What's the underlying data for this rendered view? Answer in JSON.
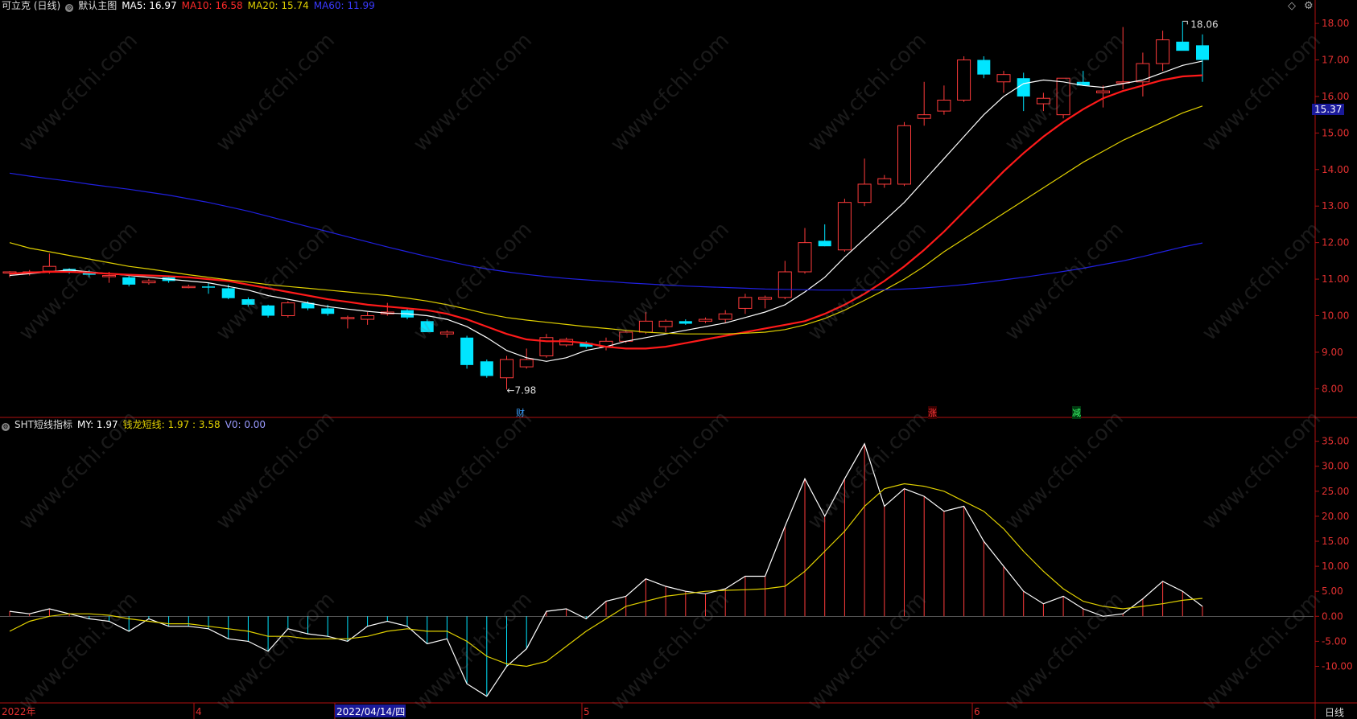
{
  "header": {
    "title": "可立克 (日线)",
    "main_label": "默认主图",
    "ma5": "MA5: 16.97",
    "ma10": "MA10: 16.58",
    "ma20": "MA20: 15.74",
    "ma60": "MA60: 11.99"
  },
  "indicator_header": {
    "name": "SHT短线指标",
    "my": "MY: 1.97",
    "qlx": "钱龙短线: 1.97 : 3.58",
    "v0": "V0: 0.00"
  },
  "labels": {
    "high": "18.06",
    "low": "←7.98",
    "current_price": "15.37",
    "period": "日线",
    "events": [
      "财",
      "涨",
      "减"
    ]
  },
  "watermark": "www.cfchi.com",
  "colors": {
    "up": "#ff3b3b",
    "down": "#00e5ff",
    "ma5": "#ffffff",
    "ma10": "#ff1a1a",
    "ma20": "#e0d000",
    "ma60": "#2020e0",
    "axis": "#b01010",
    "my_line": "#ffffff",
    "qlx_line": "#e0d000"
  },
  "chart_data": [
    {
      "type": "candlestick",
      "ylim": [
        7.7,
        18.2
      ],
      "yticks": [
        "8.00",
        "9.00",
        "10.00",
        "11.00",
        "12.00",
        "13.00",
        "14.00",
        "15.00",
        "16.00",
        "17.00",
        "18.00"
      ],
      "xticks": [
        "2022年",
        "4",
        "2022/04/14/四",
        "5",
        "6"
      ],
      "candles": [
        [
          11.2,
          11.22,
          11.05,
          11.2
        ],
        [
          11.2,
          11.25,
          11.1,
          11.2
        ],
        [
          11.22,
          11.7,
          11.15,
          11.35
        ],
        [
          11.28,
          11.3,
          11.15,
          11.2
        ],
        [
          11.2,
          11.25,
          11.05,
          11.12
        ],
        [
          11.1,
          11.2,
          10.9,
          11.1
        ],
        [
          11.05,
          11.1,
          10.8,
          10.85
        ],
        [
          10.9,
          11.0,
          10.85,
          10.95
        ],
        [
          11.05,
          11.1,
          10.9,
          10.95
        ],
        [
          10.8,
          10.85,
          10.75,
          10.8
        ],
        [
          10.8,
          10.9,
          10.6,
          10.78
        ],
        [
          10.75,
          10.85,
          10.45,
          10.48
        ],
        [
          10.45,
          10.5,
          10.25,
          10.3
        ],
        [
          10.28,
          10.3,
          9.95,
          10.0
        ],
        [
          10.0,
          10.4,
          9.95,
          10.35
        ],
        [
          10.35,
          10.4,
          10.15,
          10.2
        ],
        [
          10.2,
          10.3,
          10.0,
          10.05
        ],
        [
          9.95,
          10.0,
          9.65,
          9.95
        ],
        [
          9.9,
          10.1,
          9.75,
          10.0
        ],
        [
          10.05,
          10.35,
          10.0,
          10.1
        ],
        [
          10.15,
          10.2,
          9.9,
          9.95
        ],
        [
          9.85,
          9.9,
          9.55,
          9.55
        ],
        [
          9.5,
          9.6,
          9.4,
          9.55
        ],
        [
          9.4,
          9.45,
          8.55,
          8.65
        ],
        [
          8.75,
          8.8,
          8.3,
          8.35
        ],
        [
          8.3,
          8.9,
          7.98,
          8.8
        ],
        [
          8.6,
          9.1,
          8.55,
          8.8
        ],
        [
          8.9,
          9.5,
          8.85,
          9.4
        ],
        [
          9.2,
          9.4,
          9.15,
          9.35
        ],
        [
          9.25,
          9.3,
          9.1,
          9.15
        ],
        [
          9.15,
          9.4,
          9.05,
          9.3
        ],
        [
          9.3,
          9.6,
          9.25,
          9.55
        ],
        [
          9.55,
          10.1,
          9.5,
          9.85
        ],
        [
          9.7,
          9.9,
          9.55,
          9.85
        ],
        [
          9.85,
          9.9,
          9.75,
          9.78
        ],
        [
          9.85,
          9.95,
          9.8,
          9.9
        ],
        [
          9.9,
          10.15,
          9.8,
          10.05
        ],
        [
          10.2,
          10.6,
          10.05,
          10.5
        ],
        [
          10.45,
          10.55,
          10.2,
          10.5
        ],
        [
          10.5,
          11.5,
          10.45,
          11.2
        ],
        [
          11.2,
          12.4,
          11.15,
          12.0
        ],
        [
          12.05,
          12.5,
          11.9,
          11.9
        ],
        [
          11.8,
          13.2,
          11.75,
          13.1
        ],
        [
          13.1,
          14.3,
          13.0,
          13.6
        ],
        [
          13.6,
          13.85,
          13.5,
          13.75
        ],
        [
          13.6,
          15.3,
          13.55,
          15.2
        ],
        [
          15.4,
          16.4,
          15.2,
          15.5
        ],
        [
          15.6,
          16.3,
          15.5,
          15.9
        ],
        [
          15.9,
          17.1,
          15.85,
          17.0
        ],
        [
          17.0,
          17.1,
          16.5,
          16.6
        ],
        [
          16.4,
          16.7,
          16.1,
          16.6
        ],
        [
          16.5,
          16.65,
          15.6,
          16.0
        ],
        [
          15.8,
          16.1,
          15.6,
          15.95
        ],
        [
          15.5,
          16.5,
          15.4,
          16.5
        ],
        [
          16.4,
          16.7,
          16.3,
          16.3
        ],
        [
          16.1,
          16.3,
          15.7,
          16.15
        ],
        [
          16.4,
          17.9,
          16.2,
          16.4
        ],
        [
          16.4,
          17.2,
          16.0,
          16.9
        ],
        [
          16.9,
          17.8,
          16.7,
          17.55
        ],
        [
          17.5,
          18.06,
          17.3,
          17.25
        ],
        [
          17.4,
          17.7,
          16.4,
          17.0
        ]
      ],
      "series": [
        {
          "name": "MA5",
          "values": [
            11.1,
            11.15,
            11.2,
            11.25,
            11.2,
            11.15,
            11.1,
            11.05,
            11.0,
            10.95,
            10.9,
            10.8,
            10.7,
            10.55,
            10.45,
            10.35,
            10.25,
            10.18,
            10.12,
            10.07,
            10.05,
            10.0,
            9.9,
            9.7,
            9.4,
            9.05,
            8.85,
            8.75,
            8.85,
            9.05,
            9.15,
            9.3,
            9.4,
            9.5,
            9.6,
            9.7,
            9.8,
            9.95,
            10.1,
            10.3,
            10.65,
            11.05,
            11.6,
            12.1,
            12.6,
            13.1,
            13.7,
            14.3,
            14.9,
            15.5,
            16.0,
            16.35,
            16.45,
            16.4,
            16.3,
            16.25,
            16.35,
            16.45,
            16.65,
            16.85,
            16.97
          ]
        },
        {
          "name": "MA10",
          "values": [
            11.15,
            11.18,
            11.2,
            11.2,
            11.18,
            11.15,
            11.12,
            11.1,
            11.08,
            11.05,
            11.0,
            10.95,
            10.85,
            10.75,
            10.65,
            10.55,
            10.45,
            10.38,
            10.3,
            10.25,
            10.2,
            10.15,
            10.05,
            9.9,
            9.7,
            9.5,
            9.35,
            9.3,
            9.3,
            9.25,
            9.15,
            9.1,
            9.1,
            9.15,
            9.25,
            9.35,
            9.45,
            9.55,
            9.65,
            9.75,
            9.85,
            10.05,
            10.3,
            10.6,
            10.95,
            11.35,
            11.8,
            12.3,
            12.85,
            13.4,
            13.95,
            14.45,
            14.9,
            15.3,
            15.65,
            15.95,
            16.15,
            16.3,
            16.45,
            16.55,
            16.58
          ]
        },
        {
          "name": "MA20",
          "values": [
            12.0,
            11.85,
            11.75,
            11.65,
            11.55,
            11.45,
            11.35,
            11.28,
            11.2,
            11.12,
            11.05,
            10.98,
            10.92,
            10.85,
            10.8,
            10.75,
            10.7,
            10.65,
            10.6,
            10.55,
            10.48,
            10.4,
            10.3,
            10.18,
            10.05,
            9.95,
            9.88,
            9.82,
            9.76,
            9.7,
            9.65,
            9.6,
            9.55,
            9.52,
            9.5,
            9.5,
            9.5,
            9.52,
            9.55,
            9.62,
            9.75,
            9.92,
            10.15,
            10.42,
            10.7,
            11.0,
            11.35,
            11.75,
            12.1,
            12.45,
            12.8,
            13.15,
            13.5,
            13.85,
            14.2,
            14.5,
            14.8,
            15.05,
            15.3,
            15.55,
            15.74
          ]
        },
        {
          "name": "MA60",
          "values": [
            13.9,
            13.82,
            13.75,
            13.68,
            13.6,
            13.53,
            13.46,
            13.38,
            13.3,
            13.2,
            13.1,
            12.98,
            12.86,
            12.72,
            12.58,
            12.44,
            12.3,
            12.16,
            12.02,
            11.88,
            11.75,
            11.62,
            11.5,
            11.38,
            11.28,
            11.2,
            11.13,
            11.07,
            11.02,
            10.98,
            10.94,
            10.9,
            10.87,
            10.84,
            10.81,
            10.79,
            10.77,
            10.75,
            10.73,
            10.72,
            10.71,
            10.7,
            10.7,
            10.7,
            10.71,
            10.73,
            10.76,
            10.8,
            10.85,
            10.91,
            10.98,
            11.05,
            11.13,
            11.21,
            11.3,
            11.4,
            11.5,
            11.62,
            11.75,
            11.88,
            11.99
          ]
        }
      ]
    },
    {
      "type": "line",
      "ylim": [
        -17,
        38
      ],
      "yticks": [
        "-10.00",
        "-5.00",
        "0.00",
        "5.00",
        "10.00",
        "15.00",
        "20.00",
        "25.00",
        "30.00",
        "35.00"
      ],
      "series": [
        {
          "name": "MY",
          "values": [
            1.0,
            0.5,
            1.5,
            0.5,
            -0.5,
            -1.0,
            -3.0,
            -0.5,
            -2.0,
            -2.0,
            -2.5,
            -4.5,
            -5.0,
            -7.0,
            -2.5,
            -3.5,
            -4.0,
            -5.0,
            -2.0,
            -1.0,
            -2.0,
            -5.5,
            -4.5,
            -13.5,
            -16.0,
            -10.0,
            -6.5,
            1.0,
            1.5,
            -0.5,
            3.0,
            4.0,
            7.5,
            6.0,
            5.0,
            4.5,
            5.5,
            8.0,
            8.0,
            18.0,
            27.5,
            20.0,
            27.5,
            34.5,
            22.0,
            25.5,
            24.0,
            21.0,
            22.0,
            15.0,
            10.0,
            5.0,
            2.5,
            4.0,
            1.5,
            0.0,
            0.5,
            3.5,
            7.0,
            5.0,
            1.97
          ]
        },
        {
          "name": "钱龙短线",
          "values": [
            -3.0,
            -1.0,
            0.0,
            0.5,
            0.5,
            0.2,
            -0.5,
            -1.0,
            -1.5,
            -1.5,
            -2.0,
            -2.5,
            -3.0,
            -4.0,
            -4.0,
            -4.5,
            -4.5,
            -4.5,
            -4.0,
            -3.0,
            -2.5,
            -3.0,
            -3.0,
            -5.0,
            -8.0,
            -9.5,
            -10.0,
            -9.0,
            -6.0,
            -3.0,
            -0.5,
            2.0,
            3.0,
            4.0,
            4.5,
            5.0,
            5.2,
            5.3,
            5.5,
            6.0,
            9.0,
            13.0,
            17.0,
            22.0,
            25.5,
            26.5,
            26.0,
            25.0,
            23.0,
            21.0,
            17.5,
            13.0,
            9.0,
            5.5,
            3.0,
            2.0,
            1.5,
            2.0,
            2.5,
            3.2,
            3.58
          ]
        }
      ]
    }
  ]
}
